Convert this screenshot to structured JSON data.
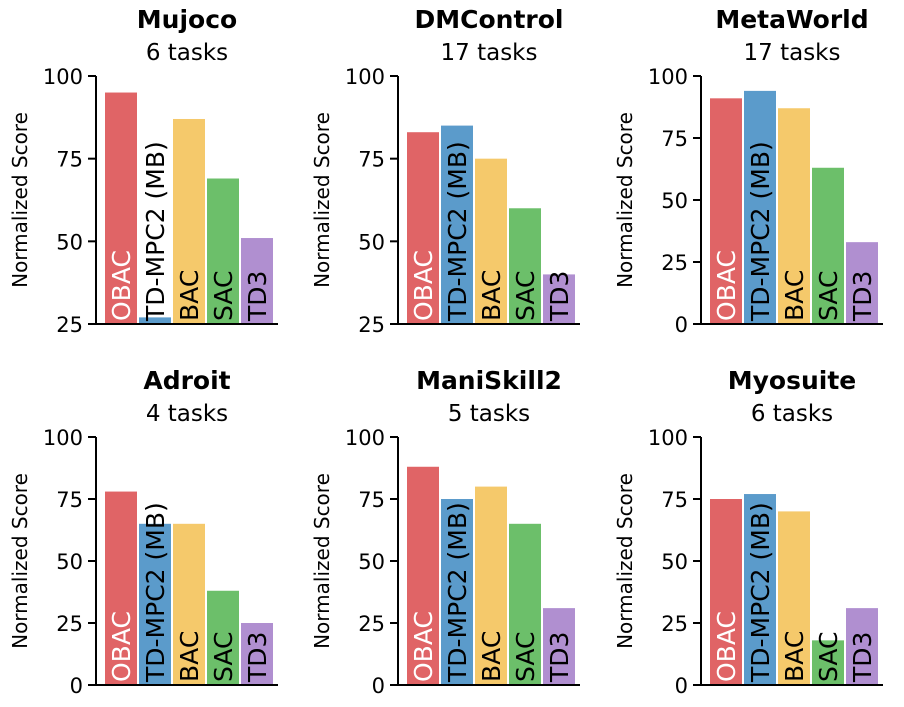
{
  "colors": {
    "OBAC": "#e06466",
    "TD-MPC2 (MB)": "#5b9bcb",
    "BAC": "#f5c96b",
    "SAC": "#6cbf6a",
    "TD3": "#b08fd0"
  },
  "chart_data": [
    {
      "type": "bar",
      "title": "Mujoco",
      "subtitle": "6 tasks",
      "ylabel": "Normalized Score",
      "categories": [
        "OBAC",
        "TD-MPC2 (MB)",
        "BAC",
        "SAC",
        "TD3"
      ],
      "values": [
        95,
        27,
        87,
        69,
        51
      ],
      "ylim": [
        25,
        100
      ],
      "yticks": [
        "25",
        "50",
        "75",
        "100"
      ],
      "grid": false
    },
    {
      "type": "bar",
      "title": "DMControl",
      "subtitle": "17 tasks",
      "ylabel": "Normalized Score",
      "categories": [
        "OBAC",
        "TD-MPC2 (MB)",
        "BAC",
        "SAC",
        "TD3"
      ],
      "values": [
        83,
        85,
        75,
        60,
        40
      ],
      "ylim": [
        25,
        100
      ],
      "yticks": [
        "25",
        "50",
        "75",
        "100"
      ],
      "grid": false
    },
    {
      "type": "bar",
      "title": "MetaWorld",
      "subtitle": "17 tasks",
      "ylabel": "Normalized Score",
      "categories": [
        "OBAC",
        "TD-MPC2 (MB)",
        "BAC",
        "SAC",
        "TD3"
      ],
      "values": [
        91,
        94,
        87,
        63,
        33
      ],
      "ylim": [
        0,
        100
      ],
      "yticks": [
        "0",
        "25",
        "50",
        "75",
        "100"
      ],
      "grid": false
    },
    {
      "type": "bar",
      "title": "Adroit",
      "subtitle": "4 tasks",
      "ylabel": "Normalized Score",
      "categories": [
        "OBAC",
        "TD-MPC2 (MB)",
        "BAC",
        "SAC",
        "TD3"
      ],
      "values": [
        78,
        65,
        65,
        38,
        25
      ],
      "ylim": [
        0,
        100
      ],
      "yticks": [
        "0",
        "25",
        "50",
        "75",
        "100"
      ],
      "grid": false
    },
    {
      "type": "bar",
      "title": "ManiSkill2",
      "subtitle": "5 tasks",
      "ylabel": "Normalized Score",
      "categories": [
        "OBAC",
        "TD-MPC2 (MB)",
        "BAC",
        "SAC",
        "TD3"
      ],
      "values": [
        88,
        75,
        80,
        65,
        31
      ],
      "ylim": [
        0,
        100
      ],
      "yticks": [
        "0",
        "25",
        "50",
        "75",
        "100"
      ],
      "grid": false
    },
    {
      "type": "bar",
      "title": "Myosuite",
      "subtitle": "6 tasks",
      "ylabel": "Normalized Score",
      "categories": [
        "OBAC",
        "TD-MPC2 (MB)",
        "BAC",
        "SAC",
        "TD3"
      ],
      "values": [
        75,
        77,
        70,
        18,
        31
      ],
      "ylim": [
        0,
        100
      ],
      "yticks": [
        "0",
        "25",
        "50",
        "75",
        "100"
      ],
      "grid": false
    }
  ]
}
